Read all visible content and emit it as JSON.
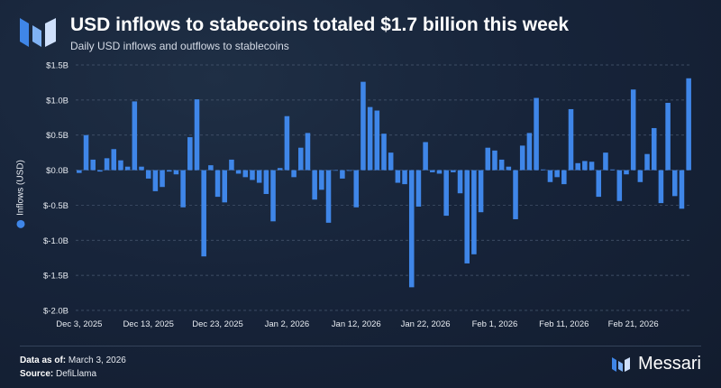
{
  "header": {
    "title": "USD inflows to stabecoins totaled $1.7 billion this week",
    "subtitle": "Daily USD inflows and outflows to stablecoins"
  },
  "footer": {
    "data_as_of_label": "Data as of:",
    "data_as_of_value": "March 3, 2026",
    "source_label": "Source:",
    "source_value": "DefiLlama",
    "brand": "Messari"
  },
  "colors": {
    "bar": "#3f86e8",
    "grid": "#4a5a72",
    "text": "#e8ecf2"
  },
  "icons": {
    "logo": "messari-logo-icon"
  },
  "chart_data": {
    "type": "bar",
    "title": "USD inflows to stabecoins totaled $1.7 billion this week",
    "subtitle": "Daily USD inflows and outflows to stablecoins",
    "ylabel": "Inflows (USD)",
    "xlabel": "",
    "ylim": [
      -2.0,
      1.5
    ],
    "y_unit": "billion USD",
    "y_ticks": [
      1.5,
      1.0,
      0.5,
      0.0,
      -0.5,
      -1.0,
      -1.5,
      -2.0
    ],
    "y_tick_labels": [
      "$1.5B",
      "$1.0B",
      "$0.5B",
      "$0.0B",
      "$-0.5B",
      "$-1.0B",
      "$-1.5B",
      "$-2.0B"
    ],
    "x_tick_labels": [
      "Dec 3, 2025",
      "Dec 13, 2025",
      "Dec 23, 2025",
      "Jan 2, 2026",
      "Jan 12, 2026",
      "Jan 22, 2026",
      "Feb 1, 2026",
      "Feb 11, 2026",
      "Feb 21, 2026"
    ],
    "x_tick_positions": [
      0,
      10,
      20,
      30,
      40,
      50,
      60,
      70,
      80
    ],
    "grid": "horizontal dashed",
    "legend": [
      {
        "name": "Inflows (USD)",
        "placement": "left, beside y-axis label"
      }
    ],
    "series": [
      {
        "name": "Inflows (USD)",
        "values": [
          -0.04,
          0.5,
          0.15,
          -0.02,
          0.17,
          0.3,
          0.14,
          0.05,
          0.98,
          0.05,
          -0.12,
          -0.3,
          -0.24,
          -0.02,
          -0.06,
          -0.53,
          0.47,
          1.01,
          -1.23,
          0.07,
          -0.38,
          -0.46,
          0.15,
          -0.05,
          -0.1,
          -0.14,
          -0.18,
          -0.34,
          -0.73,
          0.03,
          0.77,
          -0.1,
          0.32,
          0.53,
          -0.42,
          -0.28,
          -0.75,
          0.0,
          -0.12,
          -0.01,
          -0.53,
          1.26,
          0.9,
          0.85,
          0.52,
          0.25,
          -0.18,
          -0.2,
          -1.67,
          -0.52,
          0.4,
          -0.03,
          -0.05,
          -0.65,
          -0.03,
          -0.33,
          -1.33,
          -1.2,
          -0.6,
          0.32,
          0.28,
          0.15,
          0.05,
          -0.7,
          0.35,
          0.53,
          1.03,
          0.01,
          -0.17,
          -0.1,
          -0.2,
          0.87,
          0.1,
          0.13,
          0.12,
          -0.38,
          0.25,
          0.01,
          -0.44,
          -0.06,
          1.15,
          -0.17,
          0.23,
          0.6,
          -0.47,
          0.96,
          -0.37,
          -0.55,
          1.31
        ]
      }
    ]
  }
}
